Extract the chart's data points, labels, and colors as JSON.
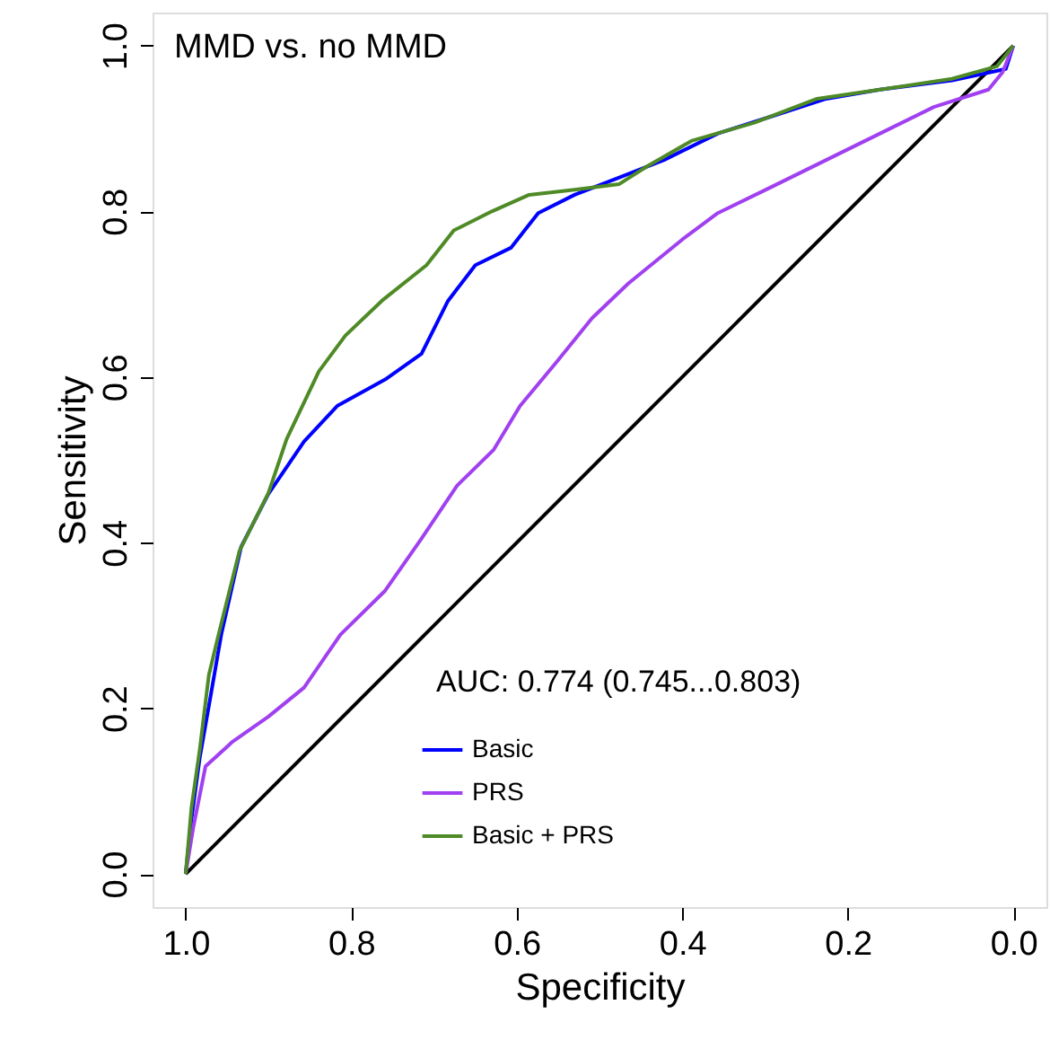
{
  "chart_data": {
    "type": "line",
    "title": "MMD vs. no MMD",
    "xlabel": "Specificity",
    "ylabel": "Sensitivity",
    "xlim": [
      1.04,
      -0.04
    ],
    "ylim": [
      -0.04,
      1.04
    ],
    "xticks": [
      {
        "value": 1,
        "label": "1.0"
      },
      0.8,
      0.6,
      0.4,
      0.2,
      {
        "value": 0,
        "label": "0.0"
      }
    ],
    "yticks": [
      {
        "value": 0,
        "label": "0.0"
      },
      0.2,
      0.4,
      0.6,
      0.8,
      {
        "value": 1,
        "label": "1.0"
      }
    ],
    "annotations": [
      "AUC: 0.774 (0.745...0.803)"
    ],
    "legend": "bottom",
    "grid": false,
    "marker": "none",
    "line_style": "solid",
    "series": [
      {
        "name": "Basic",
        "color": "#0000ff",
        "x": [
          1.0,
          0.993,
          0.983,
          0.97,
          0.957,
          0.933,
          0.9,
          0.857,
          0.817,
          0.759,
          0.715,
          0.683,
          0.65,
          0.607,
          0.574,
          0.53,
          0.476,
          0.422,
          0.357,
          0.291,
          0.226,
          0.161,
          0.074,
          0.009,
          0.0
        ],
        "values": [
          0.0,
          0.066,
          0.14,
          0.214,
          0.289,
          0.395,
          0.459,
          0.522,
          0.565,
          0.597,
          0.628,
          0.692,
          0.735,
          0.756,
          0.798,
          0.82,
          0.841,
          0.862,
          0.894,
          0.915,
          0.936,
          0.947,
          0.958,
          0.972,
          1.0
        ]
      },
      {
        "name": "PRS",
        "color": "#a040f0",
        "x": [
          1.0,
          0.991,
          0.976,
          0.943,
          0.9,
          0.857,
          0.813,
          0.759,
          0.715,
          0.672,
          0.628,
          0.596,
          0.552,
          0.509,
          0.465,
          0.4,
          0.357,
          0.291,
          0.226,
          0.161,
          0.096,
          0.03,
          0.013,
          0.0
        ],
        "values": [
          0.0,
          0.055,
          0.13,
          0.16,
          0.19,
          0.225,
          0.289,
          0.342,
          0.405,
          0.469,
          0.512,
          0.565,
          0.618,
          0.671,
          0.713,
          0.766,
          0.798,
          0.83,
          0.862,
          0.894,
          0.926,
          0.947,
          0.968,
          1.0
        ]
      },
      {
        "name": "Basic + PRS",
        "color": "#4e8a26",
        "x": [
          1.0,
          0.993,
          0.983,
          0.972,
          0.96,
          0.935,
          0.9,
          0.878,
          0.839,
          0.807,
          0.763,
          0.709,
          0.676,
          0.63,
          0.585,
          0.53,
          0.476,
          0.443,
          0.389,
          0.313,
          0.237,
          0.161,
          0.074,
          0.02,
          0.0
        ],
        "values": [
          0.0,
          0.08,
          0.15,
          0.24,
          0.29,
          0.39,
          0.46,
          0.525,
          0.607,
          0.65,
          0.692,
          0.735,
          0.777,
          0.8,
          0.82,
          0.826,
          0.833,
          0.854,
          0.885,
          0.907,
          0.936,
          0.947,
          0.96,
          0.975,
          1.0
        ]
      },
      {
        "color": "#000000",
        "x": [
          1.0,
          0.0
        ],
        "values": [
          0.0,
          1.0
        ]
      }
    ]
  }
}
